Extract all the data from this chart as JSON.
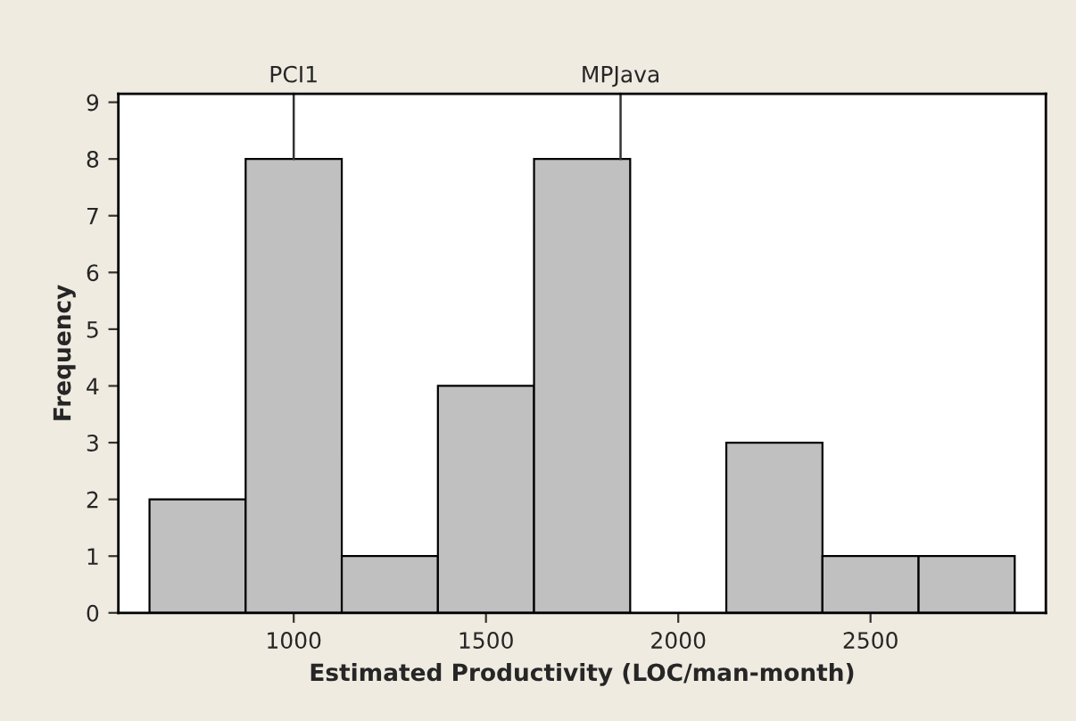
{
  "chart_data": {
    "type": "histogram",
    "xlabel": "Estimated Productivity (LOC/man-month)",
    "ylabel": "Frequency",
    "bins": [
      625,
      875,
      1125,
      1375,
      1625,
      1875,
      2125,
      2375,
      2625,
      2875
    ],
    "values": [
      2,
      8,
      1,
      4,
      8,
      0,
      3,
      1,
      1
    ],
    "color": "#c0c0c0",
    "xlim": [
      544,
      2956
    ],
    "ylim": [
      0,
      9.15
    ],
    "xticks": [
      1000,
      1500,
      2000,
      2500
    ],
    "yticks": [
      0,
      1,
      2,
      3,
      4,
      5,
      6,
      7,
      8,
      9
    ],
    "grid": false,
    "annotations": [
      {
        "text": "PCI1",
        "x": 1000,
        "y": 8
      },
      {
        "text": "MPJava",
        "x": 1850,
        "y": 8
      }
    ]
  }
}
